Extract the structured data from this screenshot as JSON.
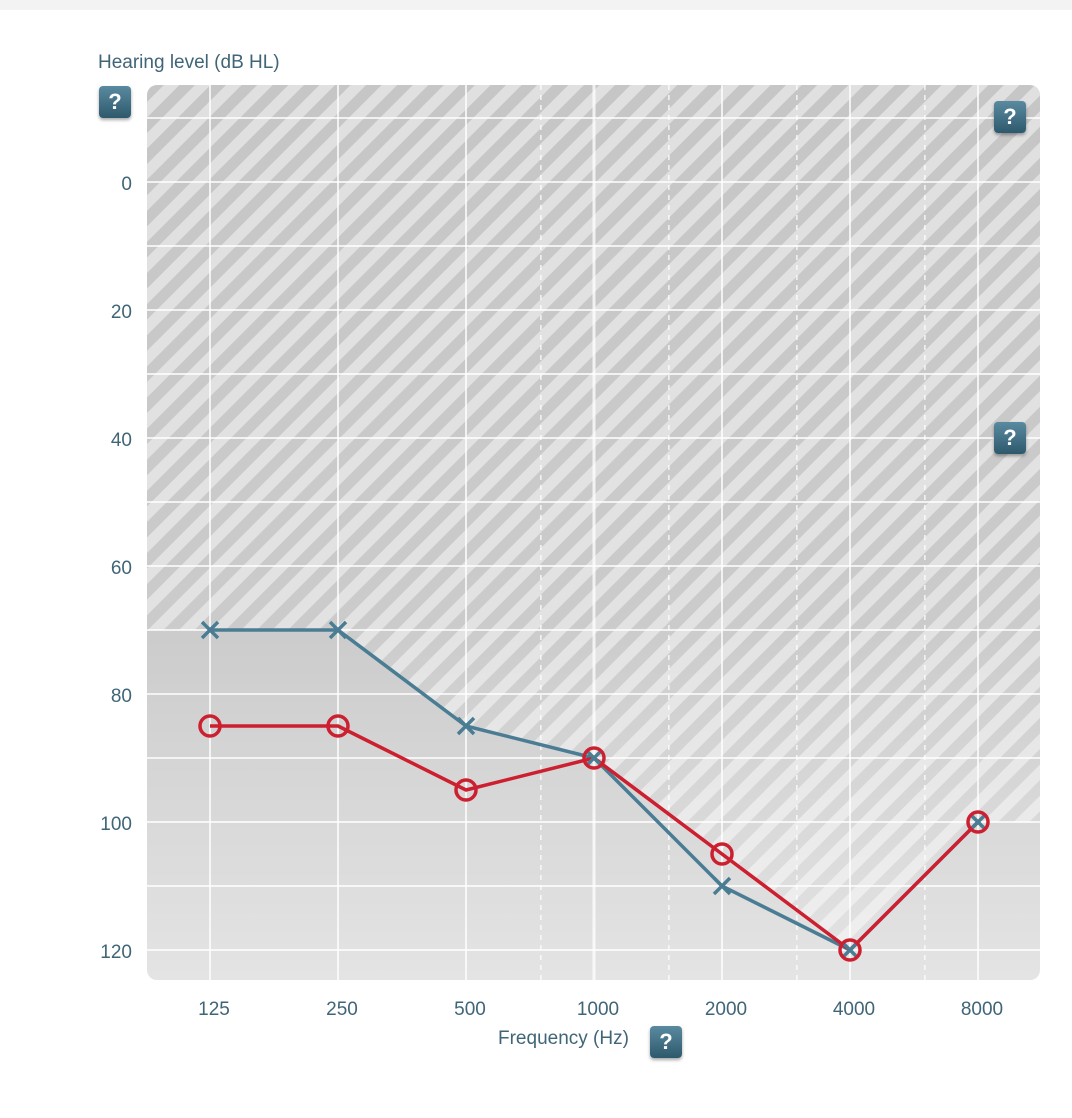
{
  "chart_data": {
    "type": "line",
    "xlabel": "Frequency (Hz)",
    "ylabel": "Hearing level (dB HL)",
    "x_ticks": [
      "125",
      "250",
      "500",
      "1000",
      "2000",
      "4000",
      "8000"
    ],
    "y_ticks": [
      "0",
      "20",
      "40",
      "60",
      "80",
      "100",
      "120"
    ],
    "x_scale": "log2",
    "ylim": [
      -15,
      125
    ],
    "y_inverted": true,
    "grid": true,
    "boundary": {
      "x": [
        125,
        250,
        500,
        1000,
        2000,
        4000,
        8000
      ],
      "y": [
        70,
        70,
        85,
        90,
        105,
        120,
        100
      ]
    },
    "series": [
      {
        "color": "#4a7d94",
        "marker": "x",
        "x": [
          125,
          250,
          500,
          1000,
          2000,
          4000,
          8000
        ],
        "y": [
          70,
          70,
          85,
          90,
          110,
          120,
          100
        ]
      },
      {
        "color": "#cc1f2f",
        "marker": "o",
        "x": [
          125,
          250,
          500,
          1000,
          2000,
          4000,
          8000
        ],
        "y": [
          85,
          85,
          95,
          90,
          105,
          120,
          100
        ]
      }
    ]
  },
  "help_icon_label": "?"
}
